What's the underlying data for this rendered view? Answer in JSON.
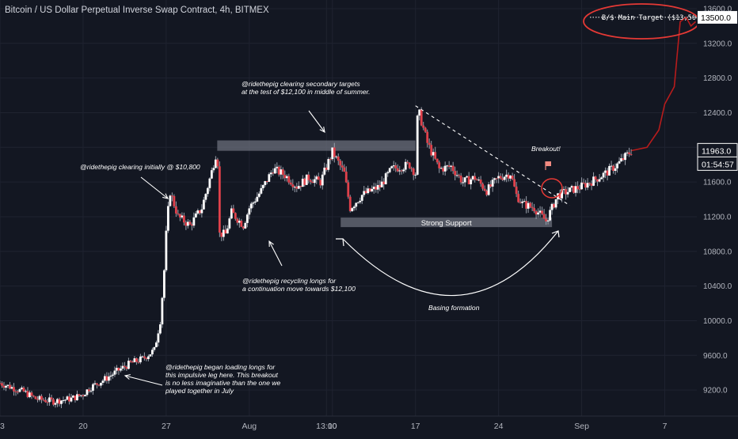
{
  "header": {
    "title": "Bitcoin / US Dollar Perpetual Inverse Swap Contract, 4h, BITMEX"
  },
  "colors": {
    "background": "#131722",
    "grid": "#1f2330",
    "up": "#ffffff",
    "down": "#e0414b",
    "wick": "#9aa0ab",
    "projection": "#b71c1c",
    "annotation_ring": "#e53935",
    "zone": "#6b6f7b"
  },
  "chart_data": {
    "type": "candlestick",
    "symbol": "XBTUSD",
    "timeframe": "4h",
    "exchange": "BITMEX",
    "ylim": [
      8900,
      13700
    ],
    "y_ticks": [
      9200,
      9600,
      10000,
      10400,
      10800,
      11200,
      11600,
      12000,
      12400,
      12800,
      13200,
      13600
    ],
    "y_tick_labels": [
      "9200.0",
      "9600.0",
      "10000.0",
      "10400.0",
      "10800.0",
      "11200.0",
      "11600.0",
      "12000.0",
      "12400.0",
      "12800.0",
      "13200.0",
      "13600.0"
    ],
    "x_ticks": [
      "13",
      "20",
      "27",
      "Aug",
      "13:00",
      "10",
      "17",
      "24",
      "Sep",
      "7"
    ],
    "x_tick_days": [
      0,
      7,
      14,
      21,
      27.5,
      28,
      35,
      42,
      49,
      56
    ],
    "x_range_days": [
      0,
      58.7
    ],
    "last_price": "11963.0",
    "countdown": "01:54:57",
    "target_price": "13500.0",
    "target_label": "Ƀ/$ Main Target ($13,500)",
    "target_value": 13500,
    "price_path": [
      [
        0,
        9280
      ],
      [
        2,
        9180
      ],
      [
        3,
        9100
      ],
      [
        4.5,
        9070
      ],
      [
        6,
        9100
      ],
      [
        7,
        9150
      ],
      [
        7.5,
        9220
      ],
      [
        8,
        9260
      ],
      [
        9,
        9340
      ],
      [
        10,
        9430
      ],
      [
        11,
        9510
      ],
      [
        12,
        9560
      ],
      [
        13,
        9660
      ],
      [
        13.5,
        10000
      ],
      [
        13.8,
        10500
      ],
      [
        14,
        11000
      ],
      [
        14.3,
        11500
      ],
      [
        15,
        11200
      ],
      [
        16,
        11100
      ],
      [
        17,
        11300
      ],
      [
        17.8,
        11700
      ],
      [
        18.3,
        11990
      ],
      [
        18.5,
        11000
      ],
      [
        19,
        11000
      ],
      [
        19.5,
        11250
      ],
      [
        20.5,
        11100
      ],
      [
        21,
        11300
      ],
      [
        22,
        11500
      ],
      [
        23,
        11750
      ],
      [
        24,
        11680
      ],
      [
        25,
        11550
      ],
      [
        26,
        11650
      ],
      [
        27,
        11600
      ],
      [
        28,
        11950
      ],
      [
        29,
        11700
      ],
      [
        29.5,
        11300
      ],
      [
        30.5,
        11450
      ],
      [
        32,
        11550
      ],
      [
        33,
        11750
      ],
      [
        34.5,
        11800
      ],
      [
        35,
        11700
      ],
      [
        35.2,
        12450
      ],
      [
        36,
        12050
      ],
      [
        37,
        11750
      ],
      [
        38,
        11780
      ],
      [
        39,
        11600
      ],
      [
        40,
        11650
      ],
      [
        41,
        11500
      ],
      [
        42,
        11650
      ],
      [
        43,
        11700
      ],
      [
        43.5,
        11450
      ],
      [
        44,
        11350
      ],
      [
        45,
        11300
      ],
      [
        46,
        11150
      ],
      [
        46.5,
        11300
      ],
      [
        47,
        11450
      ],
      [
        48,
        11500
      ],
      [
        49,
        11550
      ],
      [
        50,
        11620
      ],
      [
        51,
        11700
      ],
      [
        52,
        11800
      ],
      [
        53.2,
        11963
      ]
    ],
    "projection_path": [
      [
        53.2,
        11963
      ],
      [
        54.5,
        12000
      ],
      [
        55.5,
        12200
      ],
      [
        56,
        12500
      ],
      [
        56.8,
        12700
      ],
      [
        57.3,
        13450
      ],
      [
        57.8,
        13500
      ],
      [
        58.2,
        13400
      ],
      [
        58.6,
        13450
      ]
    ],
    "resistance_zone": {
      "day_start": 18.3,
      "day_end": 35,
      "low": 11960,
      "high": 12080
    },
    "support_zone": {
      "day_start": 28.7,
      "day_end": 46.5,
      "low": 11080,
      "high": 11190,
      "label": "Strong Support"
    },
    "trendline": {
      "from": [
        35,
        12480
      ],
      "to": [
        48,
        11330
      ]
    }
  },
  "annotations": {
    "clearing_secondary": [
      "@ridethepig clearing secondary targets",
      "at the test of $12,100 in middle of summer."
    ],
    "clearing_initially": [
      "@ridethepig clearing initially @ $10,800"
    ],
    "recycling_longs": [
      "@ridethepig recycling longs for",
      "a continuation move towards $12,100"
    ],
    "loading_longs": [
      "@ridethepig began loading longs for",
      "this impulsive leg here. This breakout",
      "is no less imaginative than the one we",
      "played together in July"
    ],
    "basing": "Basing formation",
    "breakout": "Breakout!"
  }
}
